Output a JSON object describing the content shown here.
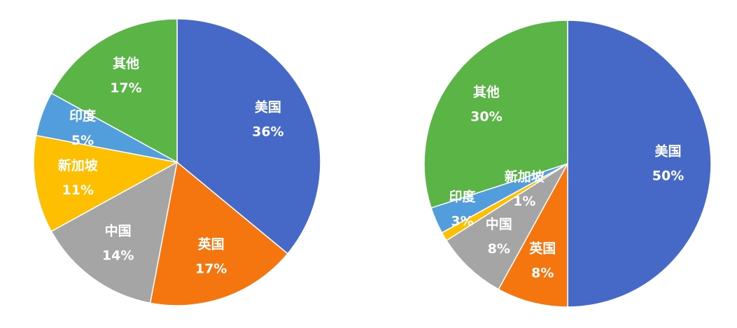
{
  "chart_data": [
    {
      "type": "pie",
      "categories": [
        "美国",
        "英国",
        "中国",
        "新加坡",
        "印度",
        "其他"
      ],
      "values": [
        36,
        17,
        14,
        11,
        5,
        17
      ],
      "value_labels": [
        "36%",
        "17%",
        "14%",
        "11%",
        "5%",
        "17%"
      ],
      "colors": [
        "#4669c8",
        "#f5760f",
        "#a5a5a5",
        "#fdbf00",
        "#529ddc",
        "#5ab446"
      ]
    },
    {
      "type": "pie",
      "categories": [
        "美国",
        "英国",
        "中国",
        "新加坡",
        "印度",
        "其他"
      ],
      "values": [
        50,
        8,
        8,
        1,
        3,
        30
      ],
      "value_labels": [
        "50%",
        "8%",
        "8%",
        "1%",
        "3%",
        "30%"
      ],
      "colors": [
        "#4669c8",
        "#f5760f",
        "#a5a5a5",
        "#fdbf00",
        "#529ddc",
        "#5ab446"
      ]
    }
  ]
}
